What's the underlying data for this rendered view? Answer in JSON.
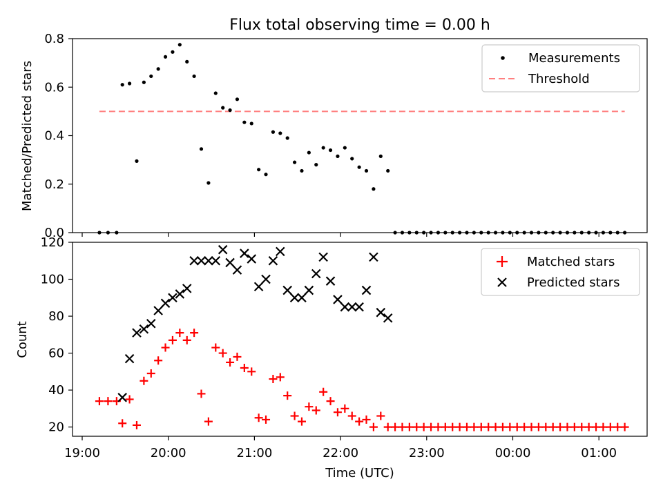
{
  "chart_data": [
    {
      "type": "scatter",
      "title": "Flux total observing time = 0.00 h",
      "xlabel": "",
      "ylabel": "Matched/Predicted stars",
      "ylim": [
        0,
        0.8
      ],
      "yticks": [
        "0.0",
        "0.2",
        "0.4",
        "0.6",
        "0.8"
      ],
      "xaxis": "time",
      "grid": false,
      "legend_position": "top-right",
      "threshold": {
        "name": "Threshold",
        "value": 0.5,
        "x_start": "19:12",
        "x_end": "01:18",
        "color": "#ff7f7f"
      },
      "series": [
        {
          "name": "Measurements",
          "color": "#000000",
          "marker": "dot",
          "x": [
            "19:12",
            "19:18",
            "19:24",
            "19:28",
            "19:33",
            "19:38",
            "19:43",
            "19:48",
            "19:53",
            "19:58",
            "20:03",
            "20:08",
            "20:13",
            "20:18",
            "20:23",
            "20:28",
            "20:33",
            "20:38",
            "20:43",
            "20:48",
            "20:53",
            "20:58",
            "21:03",
            "21:08",
            "21:13",
            "21:18",
            "21:23",
            "21:28",
            "21:33",
            "21:38",
            "21:43",
            "21:48",
            "21:53",
            "21:58",
            "22:03",
            "22:08",
            "22:13",
            "22:18",
            "22:23",
            "22:28",
            "22:33",
            "22:38",
            "22:43",
            "22:48",
            "22:53",
            "22:58",
            "23:03",
            "23:08",
            "23:13",
            "23:18",
            "23:23",
            "23:28",
            "23:33",
            "23:38",
            "23:43",
            "23:48",
            "23:53",
            "23:58",
            "00:03",
            "00:08",
            "00:13",
            "00:18",
            "00:23",
            "00:28",
            "00:33",
            "00:38",
            "00:43",
            "00:48",
            "00:53",
            "00:58",
            "01:03",
            "01:08",
            "01:13",
            "01:18"
          ],
          "values": [
            0,
            0,
            0,
            0.61,
            0.615,
            0.295,
            0.62,
            0.645,
            0.675,
            0.725,
            0.745,
            0.775,
            0.705,
            0.645,
            0.345,
            0.205,
            0.575,
            0.515,
            0.505,
            0.55,
            0.455,
            0.45,
            0.26,
            0.24,
            0.415,
            0.41,
            0.39,
            0.29,
            0.255,
            0.33,
            0.28,
            0.35,
            0.34,
            0.315,
            0.35,
            0.305,
            0.27,
            0.255,
            0.18,
            0.315,
            0.255,
            0,
            0,
            0,
            0,
            0,
            0,
            0,
            0,
            0,
            0,
            0,
            0,
            0,
            0,
            0,
            0,
            0,
            0,
            0,
            0,
            0,
            0,
            0,
            0,
            0,
            0,
            0,
            0,
            0,
            0,
            0,
            0,
            0
          ]
        }
      ]
    },
    {
      "type": "scatter",
      "title": "",
      "xlabel": "Time (UTC)",
      "ylabel": "Count",
      "ylim": [
        15,
        120
      ],
      "yticks": [
        "20",
        "40",
        "60",
        "80",
        "100",
        "120"
      ],
      "xticks": [
        "19:00",
        "20:00",
        "21:00",
        "22:00",
        "23:00",
        "00:00",
        "01:00"
      ],
      "xaxis": "time",
      "grid": false,
      "legend_position": "top-right",
      "series": [
        {
          "name": "Matched stars",
          "color": "#ff0000",
          "marker": "plus",
          "x": [
            "19:12",
            "19:18",
            "19:24",
            "19:28",
            "19:33",
            "19:38",
            "19:43",
            "19:48",
            "19:53",
            "19:58",
            "20:03",
            "20:08",
            "20:13",
            "20:18",
            "20:23",
            "20:28",
            "20:33",
            "20:38",
            "20:43",
            "20:48",
            "20:53",
            "20:58",
            "21:03",
            "21:08",
            "21:13",
            "21:18",
            "21:23",
            "21:28",
            "21:33",
            "21:38",
            "21:43",
            "21:48",
            "21:53",
            "21:58",
            "22:03",
            "22:08",
            "22:13",
            "22:18",
            "22:23",
            "22:28",
            "22:33",
            "22:38",
            "22:43",
            "22:48",
            "22:53",
            "22:58",
            "23:03",
            "23:08",
            "23:13",
            "23:18",
            "23:23",
            "23:28",
            "23:33",
            "23:38",
            "23:43",
            "23:48",
            "23:53",
            "23:58",
            "00:03",
            "00:08",
            "00:13",
            "00:18",
            "00:23",
            "00:28",
            "00:33",
            "00:38",
            "00:43",
            "00:48",
            "00:53",
            "00:58",
            "01:03",
            "01:08",
            "01:13",
            "01:18"
          ],
          "values": [
            34,
            34,
            34,
            22,
            35,
            21,
            45,
            49,
            56,
            63,
            67,
            71,
            67,
            71,
            38,
            23,
            63,
            60,
            55,
            58,
            52,
            50,
            25,
            24,
            46,
            47,
            37,
            26,
            23,
            31,
            29,
            39,
            34,
            28,
            30,
            26,
            23,
            24,
            20,
            26,
            20,
            20,
            20,
            20,
            20,
            20,
            20,
            20,
            20,
            20,
            20,
            20,
            20,
            20,
            20,
            20,
            20,
            20,
            20,
            20,
            20,
            20,
            20,
            20,
            20,
            20,
            20,
            20,
            20,
            20,
            20,
            20,
            20,
            20
          ]
        },
        {
          "name": "Predicted stars",
          "color": "#000000",
          "marker": "x",
          "x": [
            "19:28",
            "19:33",
            "19:38",
            "19:43",
            "19:48",
            "19:53",
            "19:58",
            "20:03",
            "20:08",
            "20:13",
            "20:18",
            "20:23",
            "20:28",
            "20:33",
            "20:38",
            "20:43",
            "20:48",
            "20:53",
            "20:58",
            "21:03",
            "21:08",
            "21:13",
            "21:18",
            "21:23",
            "21:28",
            "21:33",
            "21:38",
            "21:43",
            "21:48",
            "21:53",
            "21:58",
            "22:03",
            "22:08",
            "22:13",
            "22:18",
            "22:23",
            "22:28",
            "22:33"
          ],
          "values": [
            36,
            57,
            71,
            73,
            76,
            83,
            87,
            90,
            92,
            95,
            110,
            110,
            110,
            110,
            116,
            109,
            105,
            114,
            111,
            96,
            100,
            110,
            115,
            94,
            90,
            90,
            94,
            103,
            112,
            99,
            89,
            85,
            85,
            85,
            94,
            112,
            82,
            79
          ]
        }
      ]
    }
  ]
}
